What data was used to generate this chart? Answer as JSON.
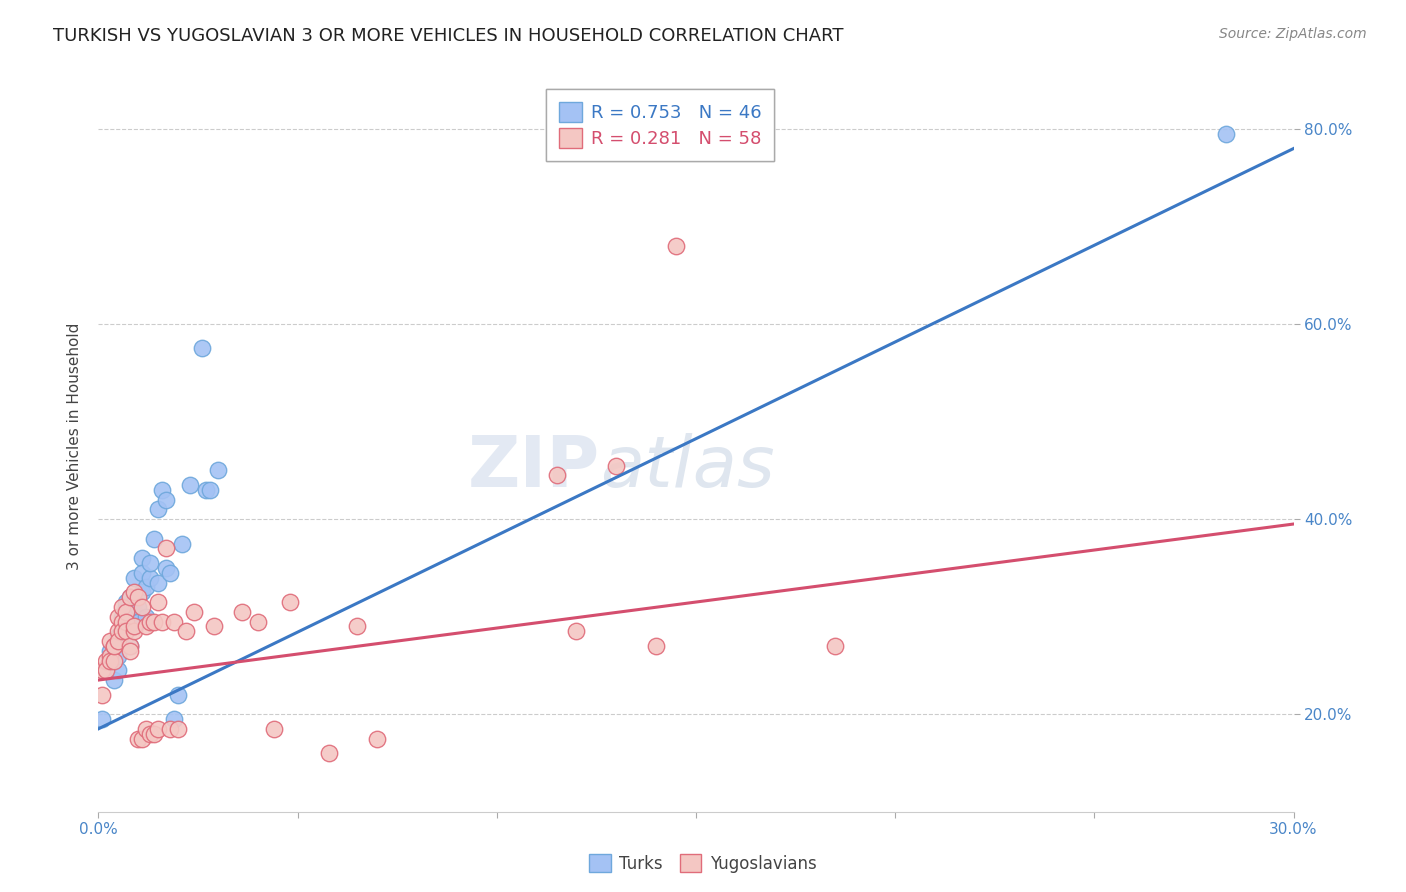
{
  "title": "TURKISH VS YUGOSLAVIAN 3 OR MORE VEHICLES IN HOUSEHOLD CORRELATION CHART",
  "source": "Source: ZipAtlas.com",
  "ylabel": "3 or more Vehicles in Household",
  "turks_scatter": [
    [
      0.002,
      0.245
    ],
    [
      0.003,
      0.255
    ],
    [
      0.003,
      0.265
    ],
    [
      0.004,
      0.235
    ],
    [
      0.004,
      0.27
    ],
    [
      0.005,
      0.245
    ],
    [
      0.005,
      0.26
    ],
    [
      0.005,
      0.28
    ],
    [
      0.006,
      0.3
    ],
    [
      0.006,
      0.285
    ],
    [
      0.007,
      0.31
    ],
    [
      0.007,
      0.295
    ],
    [
      0.007,
      0.315
    ],
    [
      0.008,
      0.27
    ],
    [
      0.008,
      0.32
    ],
    [
      0.008,
      0.3
    ],
    [
      0.009,
      0.305
    ],
    [
      0.009,
      0.315
    ],
    [
      0.009,
      0.29
    ],
    [
      0.009,
      0.34
    ],
    [
      0.01,
      0.31
    ],
    [
      0.01,
      0.295
    ],
    [
      0.011,
      0.325
    ],
    [
      0.011,
      0.36
    ],
    [
      0.011,
      0.345
    ],
    [
      0.012,
      0.33
    ],
    [
      0.012,
      0.3
    ],
    [
      0.013,
      0.34
    ],
    [
      0.013,
      0.355
    ],
    [
      0.014,
      0.38
    ],
    [
      0.015,
      0.335
    ],
    [
      0.015,
      0.41
    ],
    [
      0.016,
      0.43
    ],
    [
      0.017,
      0.35
    ],
    [
      0.017,
      0.42
    ],
    [
      0.018,
      0.345
    ],
    [
      0.019,
      0.195
    ],
    [
      0.02,
      0.22
    ],
    [
      0.021,
      0.375
    ],
    [
      0.023,
      0.435
    ],
    [
      0.026,
      0.575
    ],
    [
      0.027,
      0.43
    ],
    [
      0.028,
      0.43
    ],
    [
      0.03,
      0.45
    ],
    [
      0.001,
      0.195
    ],
    [
      0.283,
      0.795
    ]
  ],
  "yugoslav_scatter": [
    [
      0.001,
      0.245
    ],
    [
      0.001,
      0.22
    ],
    [
      0.002,
      0.255
    ],
    [
      0.002,
      0.245
    ],
    [
      0.003,
      0.26
    ],
    [
      0.003,
      0.255
    ],
    [
      0.003,
      0.275
    ],
    [
      0.004,
      0.27
    ],
    [
      0.004,
      0.255
    ],
    [
      0.004,
      0.27
    ],
    [
      0.005,
      0.285
    ],
    [
      0.005,
      0.275
    ],
    [
      0.005,
      0.3
    ],
    [
      0.006,
      0.295
    ],
    [
      0.006,
      0.285
    ],
    [
      0.006,
      0.31
    ],
    [
      0.007,
      0.305
    ],
    [
      0.007,
      0.295
    ],
    [
      0.007,
      0.285
    ],
    [
      0.008,
      0.32
    ],
    [
      0.008,
      0.27
    ],
    [
      0.008,
      0.265
    ],
    [
      0.009,
      0.285
    ],
    [
      0.009,
      0.325
    ],
    [
      0.009,
      0.29
    ],
    [
      0.01,
      0.32
    ],
    [
      0.01,
      0.175
    ],
    [
      0.011,
      0.31
    ],
    [
      0.011,
      0.175
    ],
    [
      0.012,
      0.29
    ],
    [
      0.012,
      0.185
    ],
    [
      0.013,
      0.295
    ],
    [
      0.013,
      0.18
    ],
    [
      0.014,
      0.295
    ],
    [
      0.014,
      0.18
    ],
    [
      0.015,
      0.315
    ],
    [
      0.015,
      0.185
    ],
    [
      0.016,
      0.295
    ],
    [
      0.017,
      0.37
    ],
    [
      0.018,
      0.185
    ],
    [
      0.019,
      0.295
    ],
    [
      0.02,
      0.185
    ],
    [
      0.022,
      0.285
    ],
    [
      0.024,
      0.305
    ],
    [
      0.029,
      0.29
    ],
    [
      0.036,
      0.305
    ],
    [
      0.04,
      0.295
    ],
    [
      0.044,
      0.185
    ],
    [
      0.048,
      0.315
    ],
    [
      0.058,
      0.16
    ],
    [
      0.065,
      0.29
    ],
    [
      0.07,
      0.175
    ],
    [
      0.115,
      0.445
    ],
    [
      0.12,
      0.285
    ],
    [
      0.13,
      0.455
    ],
    [
      0.14,
      0.27
    ],
    [
      0.145,
      0.68
    ],
    [
      0.185,
      0.27
    ]
  ],
  "turks_line": {
    "x": [
      0.0,
      0.3
    ],
    "y": [
      0.185,
      0.78
    ]
  },
  "yugoslav_line": {
    "x": [
      0.0,
      0.3
    ],
    "y": [
      0.235,
      0.395
    ]
  },
  "turks_color": "#a4c2f4",
  "turks_edge_color": "#6fa8dc",
  "yugoslav_color": "#f4c7c3",
  "yugoslav_edge_color": "#e06c7a",
  "line_turks_color": "#3b78c4",
  "line_yugoslav_color": "#d44e6e",
  "xlim": [
    0.0,
    0.3
  ],
  "ylim": [
    0.1,
    0.85
  ],
  "xticks": [
    0.0,
    0.05,
    0.1,
    0.15,
    0.2,
    0.25,
    0.3
  ],
  "yticks": [
    0.2,
    0.4,
    0.6,
    0.8
  ],
  "watermark": "ZIPatlas",
  "bg_color": "#ffffff",
  "grid_color": "#cccccc",
  "title_fontsize": 13,
  "label_fontsize": 11,
  "tick_fontsize": 11,
  "source_fontsize": 10,
  "legend1_R1": "R = 0.753",
  "legend1_N1": "N = 46",
  "legend1_R2": "R = 0.281",
  "legend1_N2": "N = 58",
  "legend2_label1": "Turks",
  "legend2_label2": "Yugoslavians"
}
